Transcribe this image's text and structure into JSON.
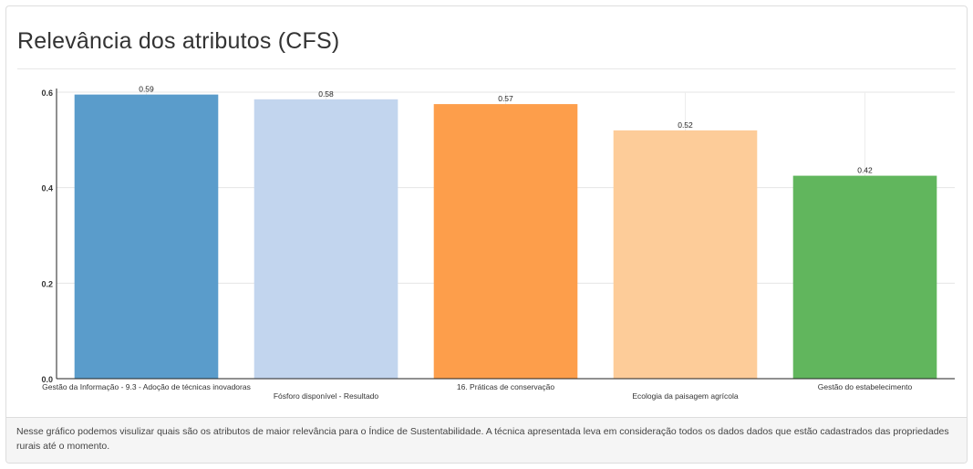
{
  "panel": {
    "title": "Relevância dos atributos (CFS)",
    "footer_text": "Nesse gráfico podemos visulizar quais são os atributos de maior relevância para o Índice de Sustentabilidade. A técnica apresentada leva em consideração todos os dados dados que estão cadastrados das propriedades rurais até o momento."
  },
  "chart_data": {
    "type": "bar",
    "title": "",
    "xlabel": "",
    "ylabel": "",
    "ylim": [
      0,
      0.6
    ],
    "yticks": [
      "0.0",
      "0.2",
      "0.4",
      "0.6"
    ],
    "grid": true,
    "categories": [
      "Gestão da Informação - 9.3 - Adoção de técnicas inovadoras",
      "Fósforo disponível - Resultado",
      "16. Práticas de conservação",
      "Ecologia da paisagem agrícola",
      "Gestão do estabelecimento"
    ],
    "values": [
      0.595,
      0.585,
      0.575,
      0.52,
      0.425
    ],
    "value_labels": [
      "0.59",
      "0.58",
      "0.57",
      "0.52",
      "0.42"
    ],
    "colors": [
      "#5a9ccb",
      "#c2d5ee",
      "#fd9e4b",
      "#fdcc99",
      "#61b65d"
    ]
  }
}
